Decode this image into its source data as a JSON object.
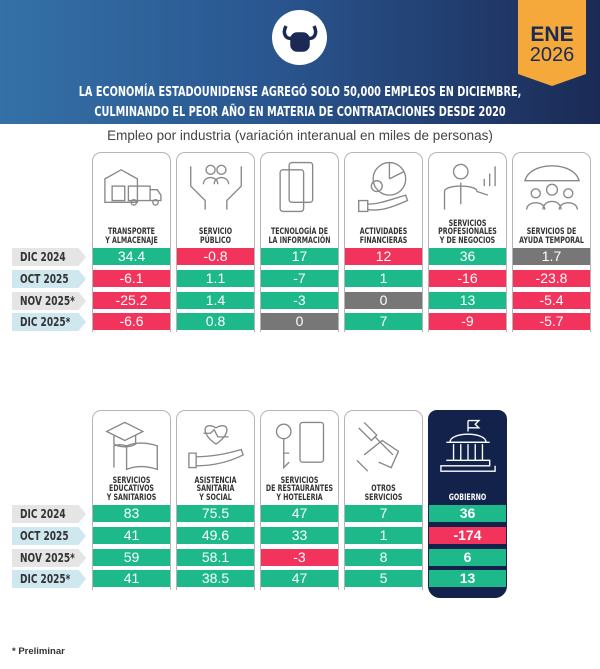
{
  "header": {
    "badge_month": "ENE",
    "badge_year": "2026",
    "title_line1": "LA ECONOMÍA ESTADOUNIDENSE AGREGÓ SOLO 50,000 EMPLEOS EN DICIEMBRE,",
    "title_line2": "CULMINANDO EL PEOR AÑO EN MATERIA DE CONTRATACIONES DESDE 2020",
    "subtitle": "Empleo por industria (variación interanual en miles de personas)",
    "colors": {
      "green": "#1db98a",
      "red": "#f2335b",
      "gray": "#777777",
      "navy": "#12224a",
      "badge": "#f5a93a"
    }
  },
  "chart_data": {
    "type": "table",
    "title": "Empleo por industria (variación interanual en miles de personas)",
    "rows": [
      "DIC 2024",
      "OCT 2025",
      "NOV 2025*",
      "DIC 2025*"
    ],
    "tables": [
      {
        "industries": [
          {
            "name": "TRANSPORTE\nY ALMACENAJE",
            "icon": "warehouse-truck-icon",
            "values": [
              "34.4",
              "-6.1",
              "-25.2",
              "-6.6"
            ],
            "colors": [
              "g",
              "r",
              "r",
              "r"
            ]
          },
          {
            "name": "SERVICIO\nPÚBLICO",
            "icon": "hands-people-icon",
            "values": [
              "-0.8",
              "1.1",
              "1.4",
              "0.8"
            ],
            "colors": [
              "r",
              "g",
              "g",
              "g"
            ]
          },
          {
            "name": "TECNOLOGÍA DE\nLA INFORMACIÓN",
            "icon": "devices-icon",
            "values": [
              "17",
              "-7",
              "-3",
              "0"
            ],
            "colors": [
              "g",
              "g",
              "g",
              "n"
            ]
          },
          {
            "name": "ACTIVIDADES\nFINANCIERAS",
            "icon": "finance-pie-icon",
            "values": [
              "12",
              "1",
              "0",
              "7"
            ],
            "colors": [
              "r",
              "g",
              "n",
              "g"
            ]
          },
          {
            "name": "SERVICIOS\nPROFESIONALES\nY DE NEGOCIOS",
            "icon": "businessman-icon",
            "values": [
              "36",
              "-16",
              "13",
              "-9"
            ],
            "colors": [
              "g",
              "r",
              "g",
              "r"
            ]
          },
          {
            "name": "SERVICIOS DE\nAYUDA TEMPORAL",
            "icon": "umbrella-people-icon",
            "values": [
              "1.7",
              "-23.8",
              "-5.4",
              "-5.7"
            ],
            "colors": [
              "n",
              "r",
              "r",
              "r"
            ]
          }
        ]
      },
      {
        "industries": [
          {
            "name": "SERVICIOS\nEDUCATIVOS\nY SANITARIOS",
            "icon": "graduation-book-icon",
            "values": [
              "83",
              "41",
              "59",
              "41"
            ],
            "colors": [
              "g",
              "g",
              "g",
              "g"
            ]
          },
          {
            "name": "ASISTENCIA\nSANITARIA\nY SOCIAL",
            "icon": "heart-hand-icon",
            "values": [
              "75.5",
              "49.6",
              "58.1",
              "38.5"
            ],
            "colors": [
              "g",
              "g",
              "g",
              "g"
            ]
          },
          {
            "name": "SERVICIOS\nDE RESTAURANTES\nY HOTELERIA",
            "icon": "key-card-icon",
            "values": [
              "47",
              "33",
              "-3",
              "47"
            ],
            "colors": [
              "g",
              "g",
              "r",
              "g"
            ]
          },
          {
            "name": "OTROS\nSERVICIOS",
            "icon": "wrench-hand-icon",
            "values": [
              "7",
              "1",
              "8",
              "5"
            ],
            "colors": [
              "g",
              "g",
              "g",
              "g"
            ]
          },
          {
            "name": "GOBIERNO",
            "icon": "government-building-icon",
            "values": [
              "36",
              "-174",
              "6",
              "13"
            ],
            "colors": [
              "g",
              "r",
              "g",
              "g"
            ]
          }
        ]
      }
    ]
  },
  "footer": {
    "note": "* Preliminar"
  }
}
